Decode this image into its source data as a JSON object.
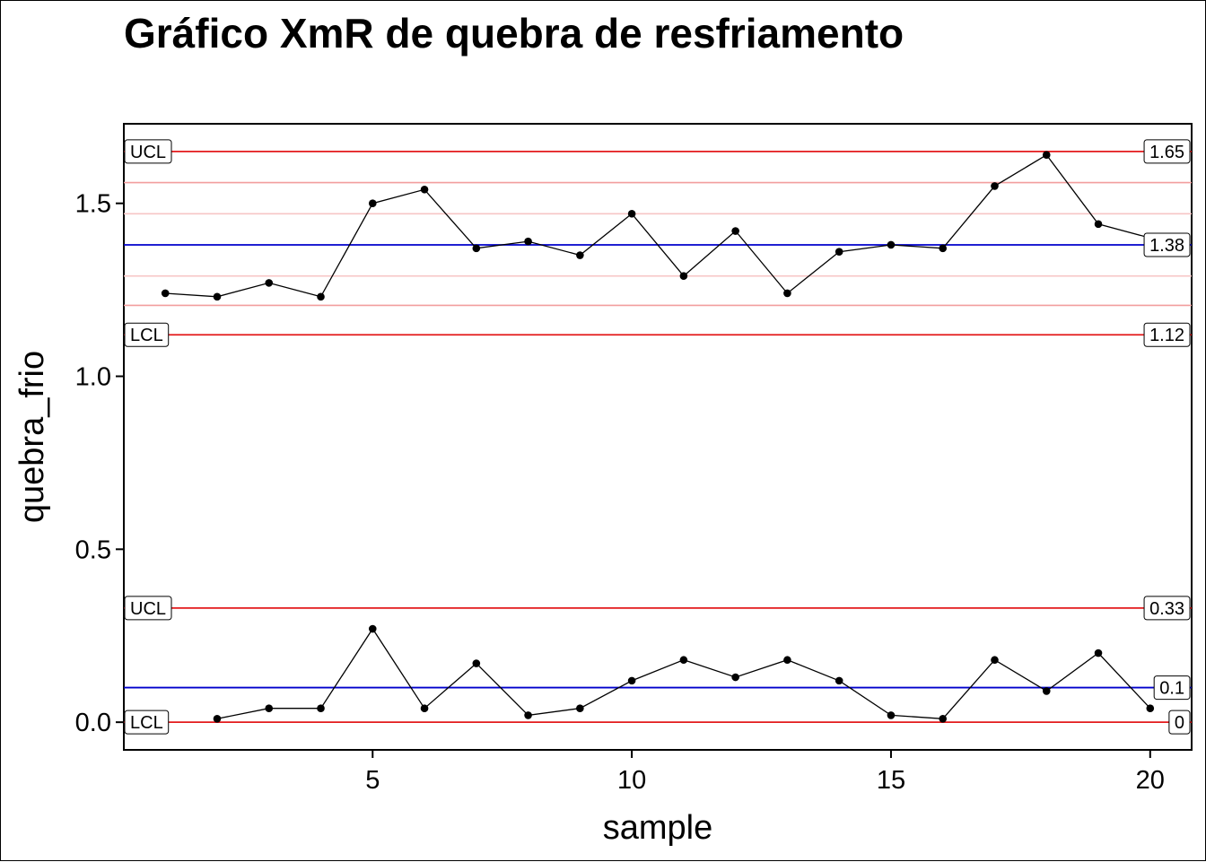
{
  "chart_data": {
    "type": "line",
    "title": "Gráfico XmR de quebra de resfriamento",
    "xlabel": "sample",
    "ylabel": "quebra_frio",
    "xlim": [
      0.2,
      20.8
    ],
    "ylim": [
      -0.08,
      1.73
    ],
    "x_ticks": [
      5,
      10,
      15,
      20
    ],
    "y_ticks": [
      0.0,
      0.5,
      1.0,
      1.5
    ],
    "x_tick_labels": [
      "5",
      "10",
      "15",
      "20"
    ],
    "y_tick_labels": [
      "0.0",
      "0.5",
      "1.0",
      "1.5"
    ],
    "colors": {
      "control_limit": "#e31a1c",
      "center_line": "#0000cc",
      "sigma_1": "#f7c6c6",
      "sigma_2": "#f29e9e",
      "data": "#000000"
    },
    "series": [
      {
        "name": "",
        "x": [
          1,
          2,
          3,
          4,
          5,
          6,
          7,
          8,
          9,
          10,
          11,
          12,
          13,
          14,
          15,
          16,
          17,
          18,
          19,
          20
        ],
        "values": [
          1.24,
          1.23,
          1.27,
          1.23,
          1.5,
          1.54,
          1.37,
          1.39,
          1.35,
          1.47,
          1.29,
          1.42,
          1.24,
          1.36,
          1.38,
          1.37,
          1.55,
          1.64,
          1.44,
          1.4
        ]
      },
      {
        "name": "",
        "x": [
          2,
          3,
          4,
          5,
          6,
          7,
          8,
          9,
          10,
          11,
          12,
          13,
          14,
          15,
          16,
          17,
          18,
          19,
          20
        ],
        "values": [
          0.01,
          0.04,
          0.04,
          0.27,
          0.04,
          0.17,
          0.02,
          0.04,
          0.12,
          0.18,
          0.13,
          0.18,
          0.12,
          0.02,
          0.01,
          0.18,
          0.09,
          0.2,
          0.04
        ]
      }
    ],
    "limits": [
      {
        "type": "ucl",
        "value": 1.65,
        "left_label": "UCL",
        "right_label": "1.65"
      },
      {
        "type": "center",
        "value": 1.38,
        "left_label": "",
        "right_label": "1.38"
      },
      {
        "type": "lcl",
        "value": 1.12,
        "left_label": "LCL",
        "right_label": "1.12"
      },
      {
        "type": "ucl",
        "value": 0.33,
        "left_label": "UCL",
        "right_label": "0.33"
      },
      {
        "type": "center",
        "value": 0.1,
        "left_label": "",
        "right_label": "0.1"
      },
      {
        "type": "lcl",
        "value": 0.0,
        "left_label": "LCL",
        "right_label": "0"
      }
    ],
    "zones": [
      {
        "value": 1.56,
        "level": 2
      },
      {
        "value": 1.47,
        "level": 1
      },
      {
        "value": 1.29,
        "level": 1
      },
      {
        "value": 1.205,
        "level": 2
      }
    ],
    "grid": false,
    "legend": "none"
  }
}
